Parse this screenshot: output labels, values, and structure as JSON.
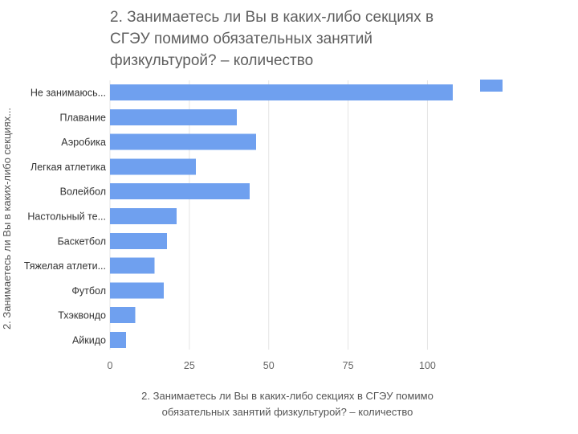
{
  "chart_data": {
    "type": "bar",
    "orientation": "horizontal",
    "title_lines": [
      "2. Занимаетесь ли Вы в каких-либо секциях в",
      "СГЭУ помимо обязательных занятий",
      "физкультурой? – количество"
    ],
    "xlabel_lines": [
      "2. Занимаетесь ли Вы в каких-либо секциях в СГЭУ помимо",
      "обязательных занятий физкультурой? – количество"
    ],
    "ylabel": "2. Занимаетесь ли Вы в каких-либо секциях...",
    "categories": [
      "Не занимаюсь...",
      "Плавание",
      "Аэробика",
      "Легкая атлетика",
      "Волейбол",
      "Настольный те...",
      "Баскетбол",
      "Тяжелая атлети...",
      "Футбол",
      "Тхэквондо",
      "Айкидо"
    ],
    "values": [
      108,
      40,
      46,
      27,
      44,
      21,
      18,
      14,
      17,
      8,
      5
    ],
    "xlim": [
      0,
      110
    ],
    "xticks": [
      0,
      25,
      50,
      75,
      100
    ],
    "xtick_labels": [
      "0",
      "25",
      "50",
      "75",
      "100"
    ],
    "grid": true,
    "legend": "top-right",
    "colors": {
      "bar": "#6fa0ef",
      "title": "#5f5f5f",
      "grid": "#e4e4e4"
    }
  }
}
